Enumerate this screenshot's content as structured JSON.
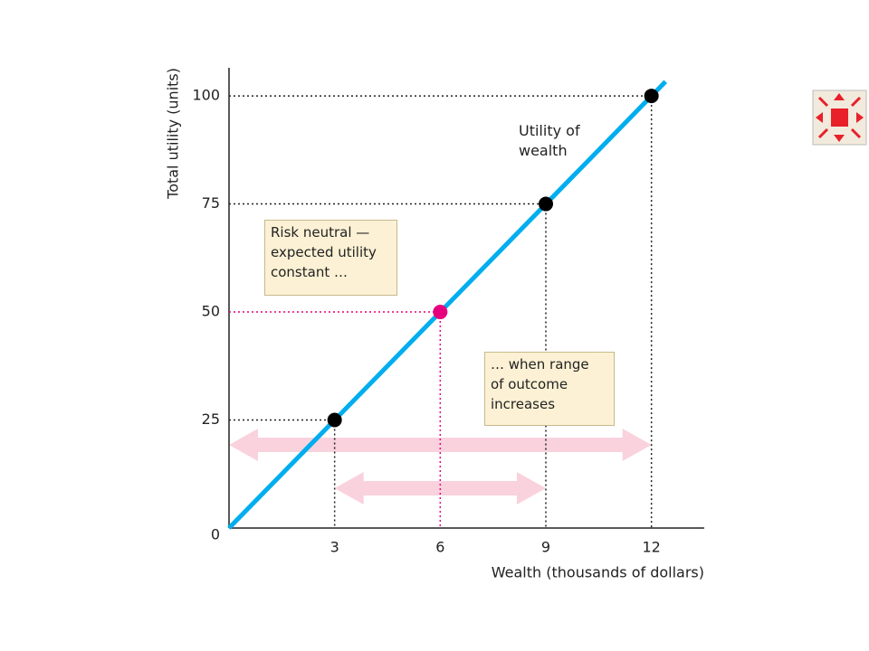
{
  "chart_data": {
    "type": "line",
    "x_label": "Wealth (thousands of dollars)",
    "y_label": "Total utility (units)",
    "xlim": [
      0,
      13.5
    ],
    "ylim": [
      0,
      106.5
    ],
    "xticks": [
      3,
      6,
      9,
      12
    ],
    "yticks": [
      0,
      25,
      50,
      75,
      100
    ],
    "series": [
      {
        "name": "Utility of wealth",
        "color": "#00aeef",
        "x": [
          0,
          12.4
        ],
        "values": [
          0,
          103.3
        ]
      }
    ],
    "points": {
      "x": [
        3,
        6,
        9,
        12
      ],
      "values": [
        25,
        50,
        75,
        100
      ],
      "color": "#000000"
    },
    "highlight": {
      "x": 6,
      "y": 50,
      "color": "#e6007e"
    },
    "ranges": [
      {
        "from": 0,
        "to": 12
      },
      {
        "from": 3,
        "to": 9
      }
    ],
    "range_color": "#f9d2de",
    "annotations": [
      {
        "lines": [
          "Risk neutral —",
          "expected utility",
          "constant …"
        ]
      },
      {
        "lines": [
          "… when range",
          "of outcome",
          "increases"
        ]
      }
    ]
  }
}
